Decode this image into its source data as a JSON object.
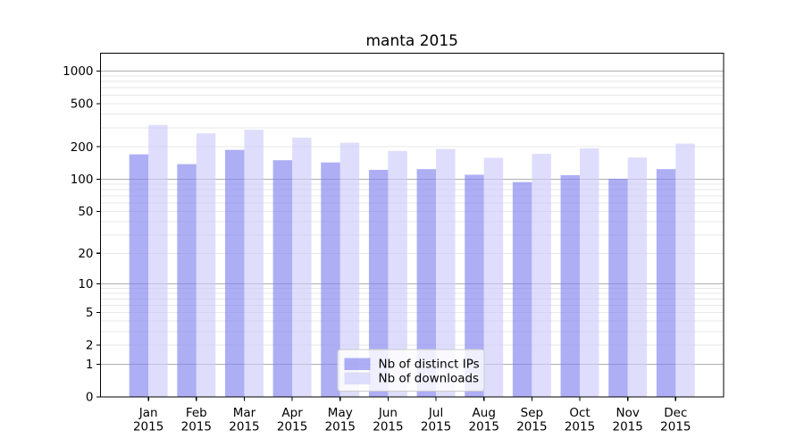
{
  "chart_data": {
    "type": "bar",
    "title": "manta 2015",
    "categories": [
      "Jan 2015",
      "Feb 2015",
      "Mar 2015",
      "Apr 2015",
      "May 2015",
      "Jun 2015",
      "Jul 2015",
      "Aug 2015",
      "Sep 2015",
      "Oct 2015",
      "Nov 2015",
      "Dec 2015"
    ],
    "series": [
      {
        "name": "Nb of distinct IPs",
        "color": "#8282f0",
        "values": [
          170,
          138,
          187,
          150,
          143,
          122,
          124,
          110,
          94,
          109,
          101,
          124
        ]
      },
      {
        "name": "Nb of downloads",
        "color": "#cdcdfa",
        "values": [
          318,
          266,
          287,
          243,
          218,
          183,
          191,
          158,
          172,
          193,
          159,
          214
        ]
      }
    ],
    "yscale": "log1p",
    "y_ticks": [
      0,
      1,
      2,
      5,
      10,
      20,
      50,
      100,
      200,
      500,
      1000
    ],
    "ylim": [
      0,
      1445
    ],
    "grid": true,
    "legend_position": "lower-center",
    "colors": {
      "major_grid": "#b0b0b0",
      "minor_grid": "#e7e7e7",
      "axis": "#000000",
      "text": "#000000",
      "legend_border": "#cccccc",
      "legend_bg": "rgba(255,255,255,0.8)"
    }
  }
}
